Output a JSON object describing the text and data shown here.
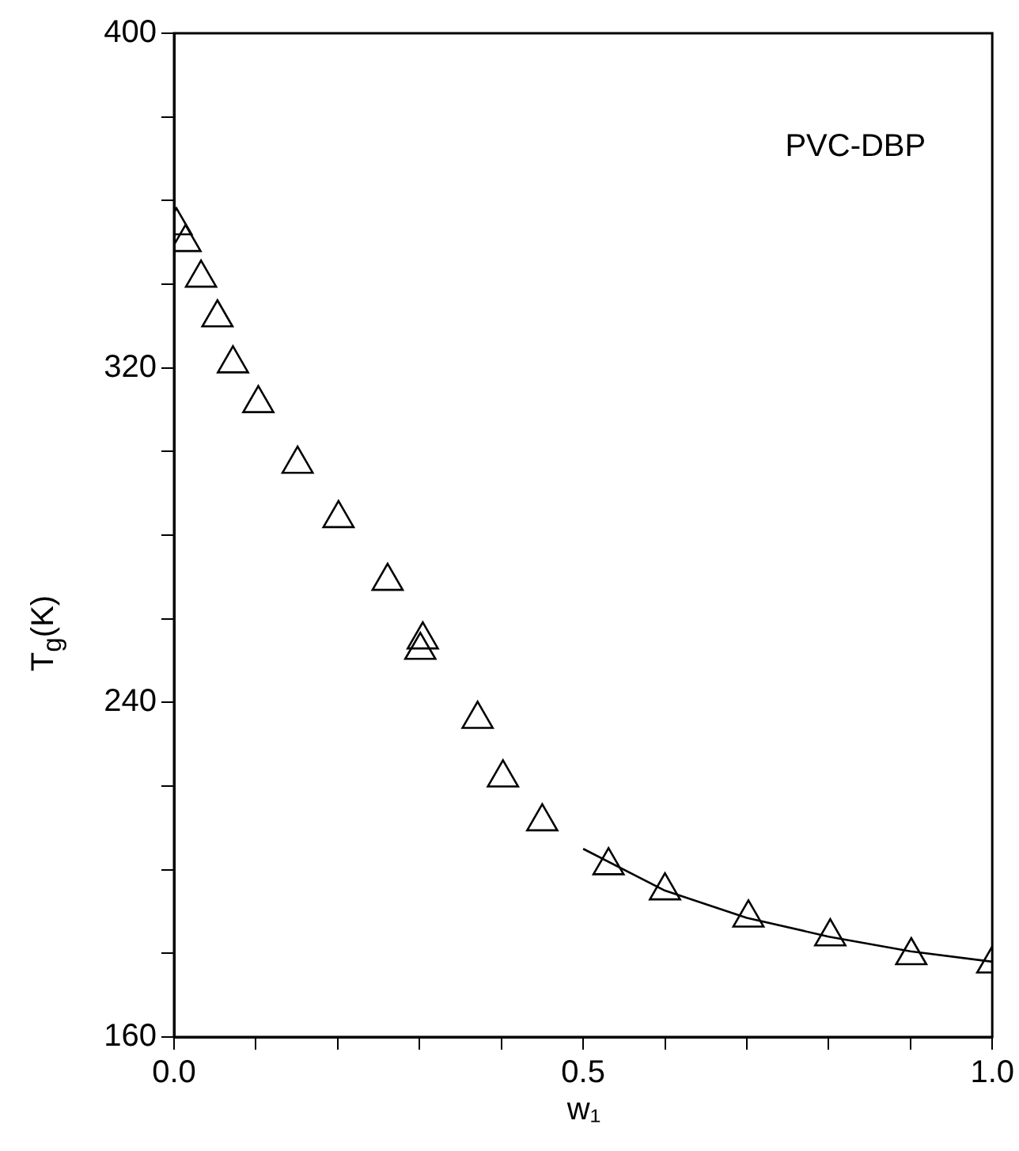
{
  "chart_data": {
    "type": "scatter",
    "xlabel": "w₁",
    "ylabel": "T$_{g}$(K)",
    "xlim": [
      0,
      1
    ],
    "ylim": [
      160,
      400
    ],
    "xticks": [
      {
        "value": 0,
        "label": "0.0"
      },
      {
        "value": 0.1,
        "label": null
      },
      {
        "value": 0.2,
        "label": null
      },
      {
        "value": 0.3,
        "label": null
      },
      {
        "value": 0.4,
        "label": null
      },
      {
        "value": 0.5,
        "label": "0.5"
      },
      {
        "value": 0.6,
        "label": null
      },
      {
        "value": 0.7,
        "label": null
      },
      {
        "value": 0.8,
        "label": null
      },
      {
        "value": 0.9,
        "label": null
      },
      {
        "value": 1,
        "label": "1.0"
      }
    ],
    "yticks": [
      160,
      {
        "value": 180,
        "label": null
      },
      {
        "value": 200,
        "label": null
      },
      {
        "value": 220,
        "label": null
      },
      240,
      {
        "value": 260,
        "label": null
      },
      {
        "value": 280,
        "label": null
      },
      {
        "value": 300,
        "label": null
      },
      320,
      {
        "value": 340,
        "label": null
      },
      {
        "value": 360,
        "label": null
      },
      {
        "value": 380,
        "label": null
      },
      400
    ],
    "annotations": [
      "PVC-DBP"
    ],
    "series": [
      {
        "marker": "triangle",
        "color": "#000000",
        "x": [
          0.003,
          0.014,
          0.033,
          0.053,
          0.072,
          0.103,
          0.151,
          0.201,
          0.261,
          0.304,
          0.301,
          0.371,
          0.402,
          0.45,
          0.531,
          0.6,
          0.702,
          0.802,
          0.901,
          1.0
        ],
        "values": [
          354,
          350,
          341.5,
          332,
          321,
          311.5,
          297,
          284,
          269,
          255,
          252.5,
          236,
          222,
          211.5,
          201,
          195,
          188.5,
          184,
          179.5,
          177.5
        ]
      },
      {
        "type": "line",
        "marker": "none",
        "color": "#000000",
        "x": [
          0.5,
          0.6,
          0.7,
          0.8,
          0.9,
          1.0
        ],
        "values": [
          205,
          195,
          188.5,
          184,
          180.5,
          178
        ]
      }
    ]
  }
}
